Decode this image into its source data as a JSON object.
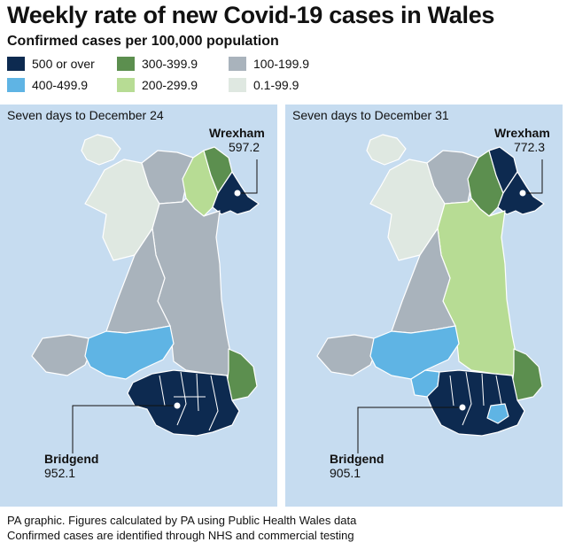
{
  "title": "Weekly rate of new Covid-19 cases in Wales",
  "subtitle": "Confirmed cases per 100,000 population",
  "legend": [
    {
      "label": "500 or over",
      "color": "#0d2a50"
    },
    {
      "label": "400-499.9",
      "color": "#5fb4e4"
    },
    {
      "label": "300-399.9",
      "color": "#5c8f4f"
    },
    {
      "label": "200-299.9",
      "color": "#b7dc94"
    },
    {
      "label": "100-199.9",
      "color": "#a9b3bc"
    },
    {
      "label": "0.1-99.9",
      "color": "#dfe8e1"
    }
  ],
  "panels": [
    {
      "title": "Seven days to December 24",
      "callouts": [
        {
          "name": "Wrexham",
          "value": "597.2"
        },
        {
          "name": "Bridgend",
          "value": "952.1"
        }
      ],
      "region_categories": {
        "anglesey": "0.1-99.9",
        "gwynedd": "0.1-99.9",
        "conwy": "100-199.9",
        "denbighshire": "200-299.9",
        "flintshire": "300-399.9",
        "wrexham": "500 or over",
        "powys": "100-199.9",
        "ceredigion": "100-199.9",
        "pembrokeshire": "100-199.9",
        "carmarthenshire": "400-499.9",
        "monmouthshire": "300-399.9",
        "south_east": "500 or over"
      }
    },
    {
      "title": "Seven days to December 31",
      "callouts": [
        {
          "name": "Wrexham",
          "value": "772.3"
        },
        {
          "name": "Bridgend",
          "value": "905.1"
        }
      ],
      "region_categories": {
        "anglesey": "0.1-99.9",
        "gwynedd": "0.1-99.9",
        "conwy": "100-199.9",
        "denbighshire": "300-399.9",
        "flintshire": "500 or over",
        "wrexham": "500 or over",
        "powys": "200-299.9",
        "ceredigion": "100-199.9",
        "pembrokeshire": "100-199.9",
        "carmarthenshire": "400-499.9",
        "swansea": "400-499.9",
        "monmouthshire": "300-399.9",
        "south_east": "500 or over",
        "cardiff_vale": "400-499.9"
      }
    }
  ],
  "colors": {
    "sea": "#c6dcf0",
    "border": "#ffffff"
  },
  "footer": [
    "PA graphic. Figures calculated by PA using Public Health Wales data",
    "Confirmed cases are identified through NHS and commercial testing"
  ]
}
